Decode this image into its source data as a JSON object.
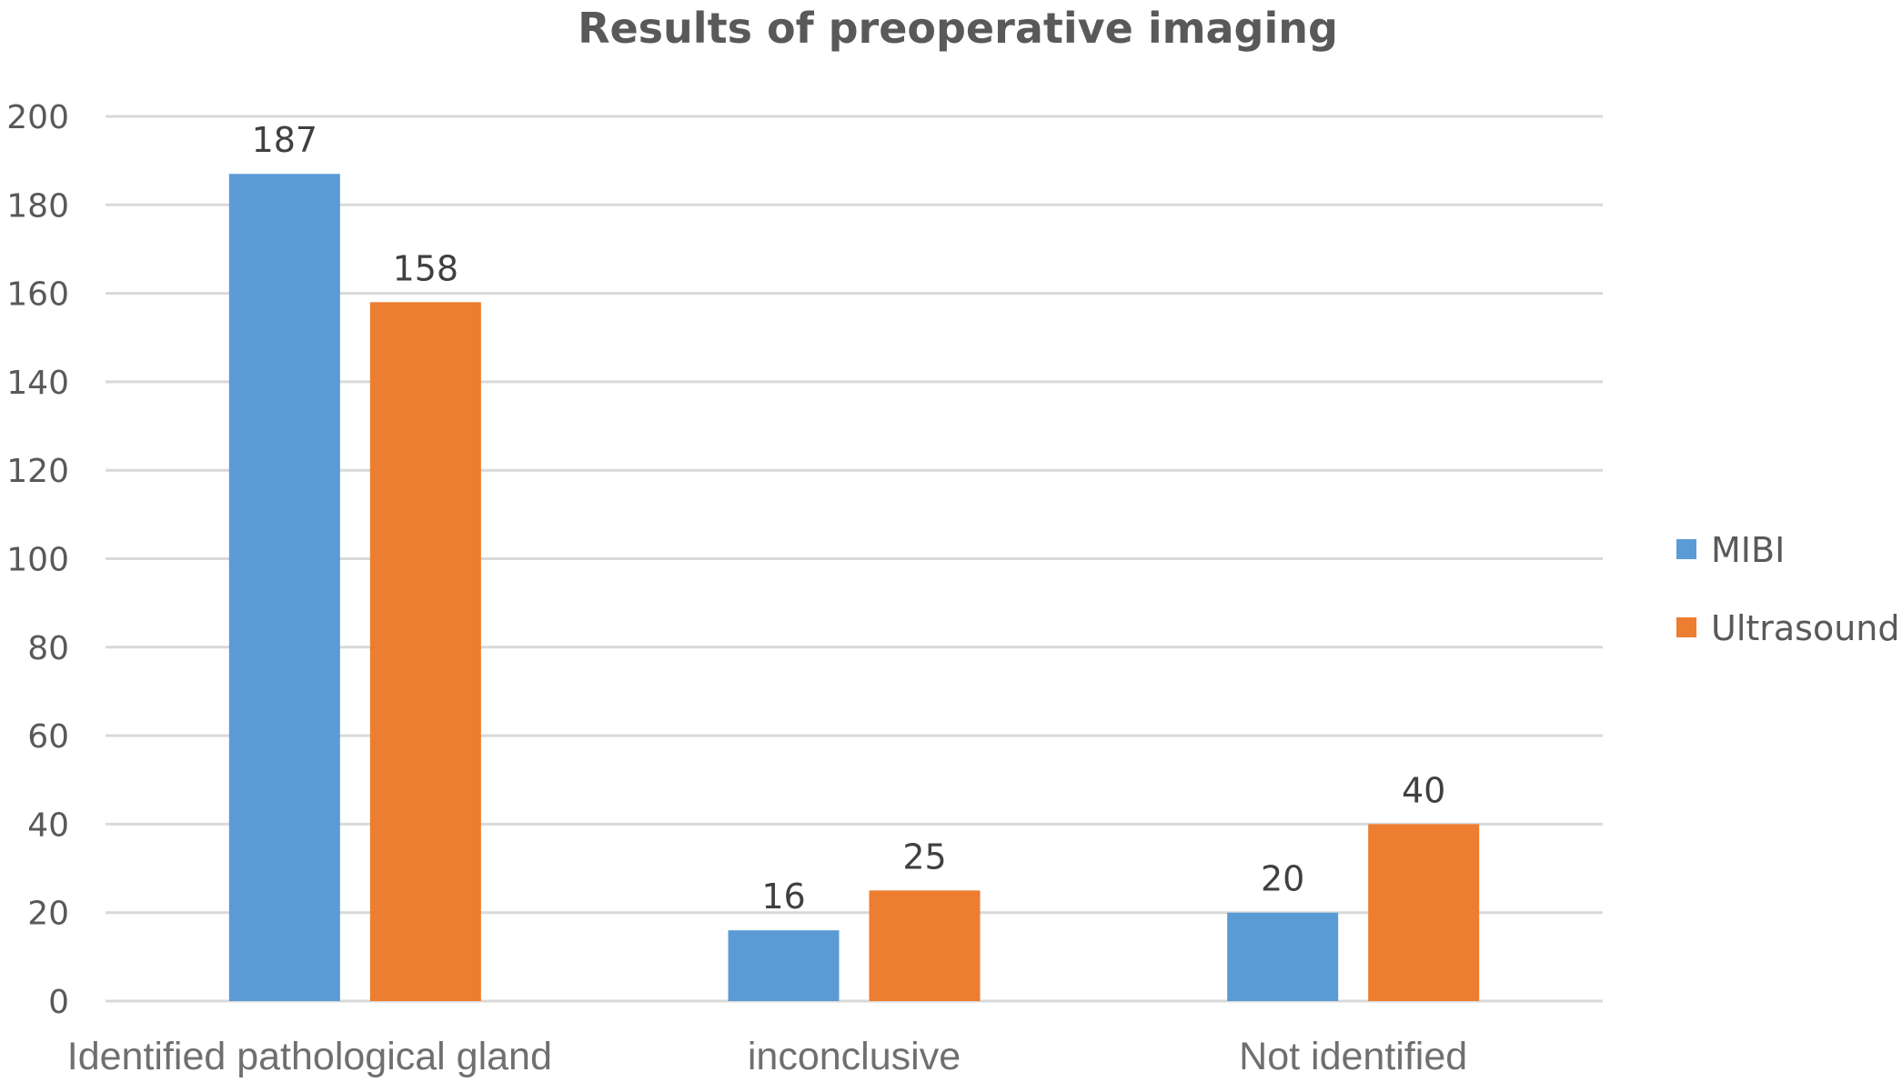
{
  "chart_data": {
    "type": "bar",
    "title": "Results of preoperative imaging",
    "categories": [
      "Identified pathological gland",
      "inconclusive",
      "Not identified"
    ],
    "series": [
      {
        "name": "MIBI",
        "values": [
          187,
          16,
          20
        ],
        "color": "#5B9BD5"
      },
      {
        "name": "Ultrasound",
        "values": [
          158,
          25,
          40
        ],
        "color": "#ED7D31"
      }
    ],
    "ylim": [
      0,
      200
    ],
    "yticks": [
      0,
      20,
      40,
      60,
      80,
      100,
      120,
      140,
      160,
      180,
      200
    ],
    "xlabel": "",
    "ylabel": "",
    "grid": true,
    "legend": "right",
    "data_labels": true
  }
}
